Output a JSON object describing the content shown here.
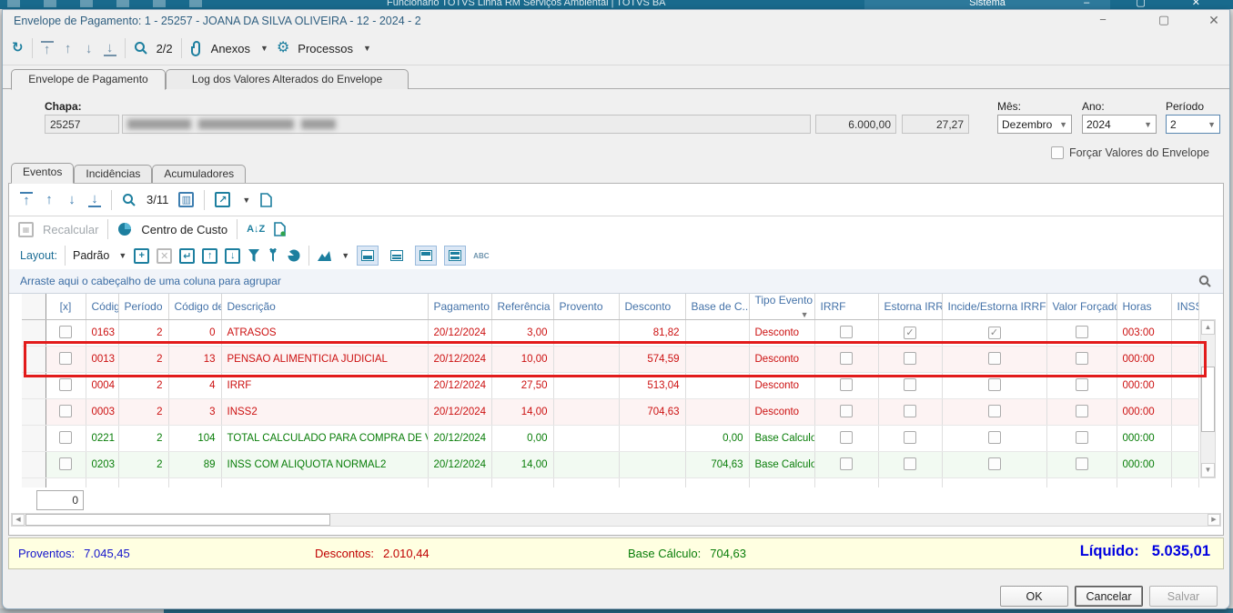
{
  "background_window": {
    "toolbar_text": "Funcionário    TOTVS Linha RM    Serviços Ambientai   |   TOTVS BA",
    "tab_label": "Sistema"
  },
  "dialog": {
    "title": "Envelope de Pagamento: 1 - 25257 - JOANA DA SILVA OLIVEIRA - 12 - 2024 - 2"
  },
  "main_toolbar": {
    "counter": "2/2",
    "anexos": "Anexos",
    "processos": "Processos"
  },
  "outer_tabs": {
    "tab1": "Envelope de Pagamento",
    "tab2": "Log dos Valores Alterados do Envelope"
  },
  "form": {
    "chapa_label": "Chapa:",
    "chapa_value": "25257",
    "salary_value": "6.000,00",
    "rate_value": "27,27",
    "mes_label": "Mês:",
    "mes_value": "Dezembro",
    "ano_label": "Ano:",
    "ano_value": "2024",
    "periodo_label": "Período",
    "periodo_value": "2",
    "forcar_label": "Forçar Valores do Envelope",
    "forcar_checked": false
  },
  "inner_tabs": {
    "tab1": "Eventos",
    "tab2": "Incidências",
    "tab3": "Acumuladores"
  },
  "grid": {
    "counter": "3/11",
    "recalcular": "Recalcular",
    "centro_de_custo": "Centro de Custo",
    "layout_label": "Layout:",
    "layout_preset": "Padrão",
    "abc": "ABC",
    "group_hint": "Arraste aqui o cabeçalho de uma coluna para agrupar",
    "filter_column": "Tipo Evento",
    "columns": [
      "",
      "[x]",
      "Código",
      "Período",
      "Código de ...",
      "Descrição",
      "Pagamento",
      "Referência",
      "Provento",
      "Desconto",
      "Base de C...",
      "Tipo Evento",
      "IRRF",
      "Estorna IRRF",
      "Incide/Estorna IRRF",
      "Valor Forçado",
      "Horas",
      "INSS"
    ],
    "rows": [
      {
        "codigo": "0163",
        "periodo": "2",
        "codigo_de": "0",
        "descricao": "ATRASOS",
        "pagamento": "20/12/2024",
        "referencia": "3,00",
        "provento": "",
        "desconto": "81,82",
        "base": "",
        "tipo": "Desconto",
        "irrf": false,
        "estorna": true,
        "incide": true,
        "forcado": false,
        "horas": "003:00",
        "inss": "",
        "fg": "#cc1111",
        "bg": "#ffffff",
        "highlighted": false
      },
      {
        "codigo": "0013",
        "periodo": "2",
        "codigo_de": "13",
        "descricao": "PENSAO ALIMENTICIA JUDICIAL",
        "pagamento": "20/12/2024",
        "referencia": "10,00",
        "provento": "",
        "desconto": "574,59",
        "base": "",
        "tipo": "Desconto",
        "irrf": false,
        "estorna": false,
        "incide": false,
        "forcado": false,
        "horas": "000:00",
        "inss": "",
        "fg": "#cc1111",
        "bg": "#fdf3f3",
        "highlighted": true
      },
      {
        "codigo": "0004",
        "periodo": "2",
        "codigo_de": "4",
        "descricao": "IRRF",
        "pagamento": "20/12/2024",
        "referencia": "27,50",
        "provento": "",
        "desconto": "513,04",
        "base": "",
        "tipo": "Desconto",
        "irrf": false,
        "estorna": false,
        "incide": false,
        "forcado": false,
        "horas": "000:00",
        "inss": "",
        "fg": "#cc1111",
        "bg": "#ffffff",
        "highlighted": false
      },
      {
        "codigo": "0003",
        "periodo": "2",
        "codigo_de": "3",
        "descricao": "INSS2",
        "pagamento": "20/12/2024",
        "referencia": "14,00",
        "provento": "",
        "desconto": "704,63",
        "base": "",
        "tipo": "Desconto",
        "irrf": false,
        "estorna": false,
        "incide": false,
        "forcado": false,
        "horas": "000:00",
        "inss": "",
        "fg": "#cc1111",
        "bg": "#fdf3f3",
        "highlighted": false
      },
      {
        "codigo": "0221",
        "periodo": "2",
        "codigo_de": "104",
        "descricao": "TOTAL CALCULADO PARA COMPRA DE V...",
        "pagamento": "20/12/2024",
        "referencia": "0,00",
        "provento": "",
        "desconto": "",
        "base": "0,00",
        "tipo": "Base Calculo",
        "irrf": false,
        "estorna": false,
        "incide": false,
        "forcado": false,
        "horas": "000:00",
        "inss": "",
        "fg": "#087d08",
        "bg": "#ffffff",
        "highlighted": false
      },
      {
        "codigo": "0203",
        "periodo": "2",
        "codigo_de": "89",
        "descricao": "INSS COM ALIQUOTA NORMAL2",
        "pagamento": "20/12/2024",
        "referencia": "14,00",
        "provento": "",
        "desconto": "",
        "base": "704,63",
        "tipo": "Base Calculo",
        "irrf": false,
        "estorna": false,
        "incide": false,
        "forcado": false,
        "horas": "000:00",
        "inss": "",
        "fg": "#087d08",
        "bg": "#f2faf2",
        "highlighted": false
      }
    ],
    "footer_cell": "0"
  },
  "summary": {
    "proventos_label": "Proventos:",
    "proventos_value": "7.045,45",
    "descontos_label": "Descontos:",
    "descontos_value": "2.010,44",
    "base_label": "Base Cálculo:",
    "base_value": "704,63",
    "liquido_label": "Líquido:",
    "liquido_value": "5.035,01"
  },
  "action_buttons": {
    "ok": "OK",
    "cancel": "Cancelar",
    "save": "Salvar"
  },
  "colors": {
    "accent_teal": "#1d7f9f",
    "header_blue": "#4472a8",
    "desconto_red": "#cc1111",
    "base_green": "#087d08",
    "highlight_red": "#e21b1b",
    "summary_bg": "#ffffe1",
    "liquido_blue": "#0000e0",
    "background_titlebar": "#196a8d"
  }
}
